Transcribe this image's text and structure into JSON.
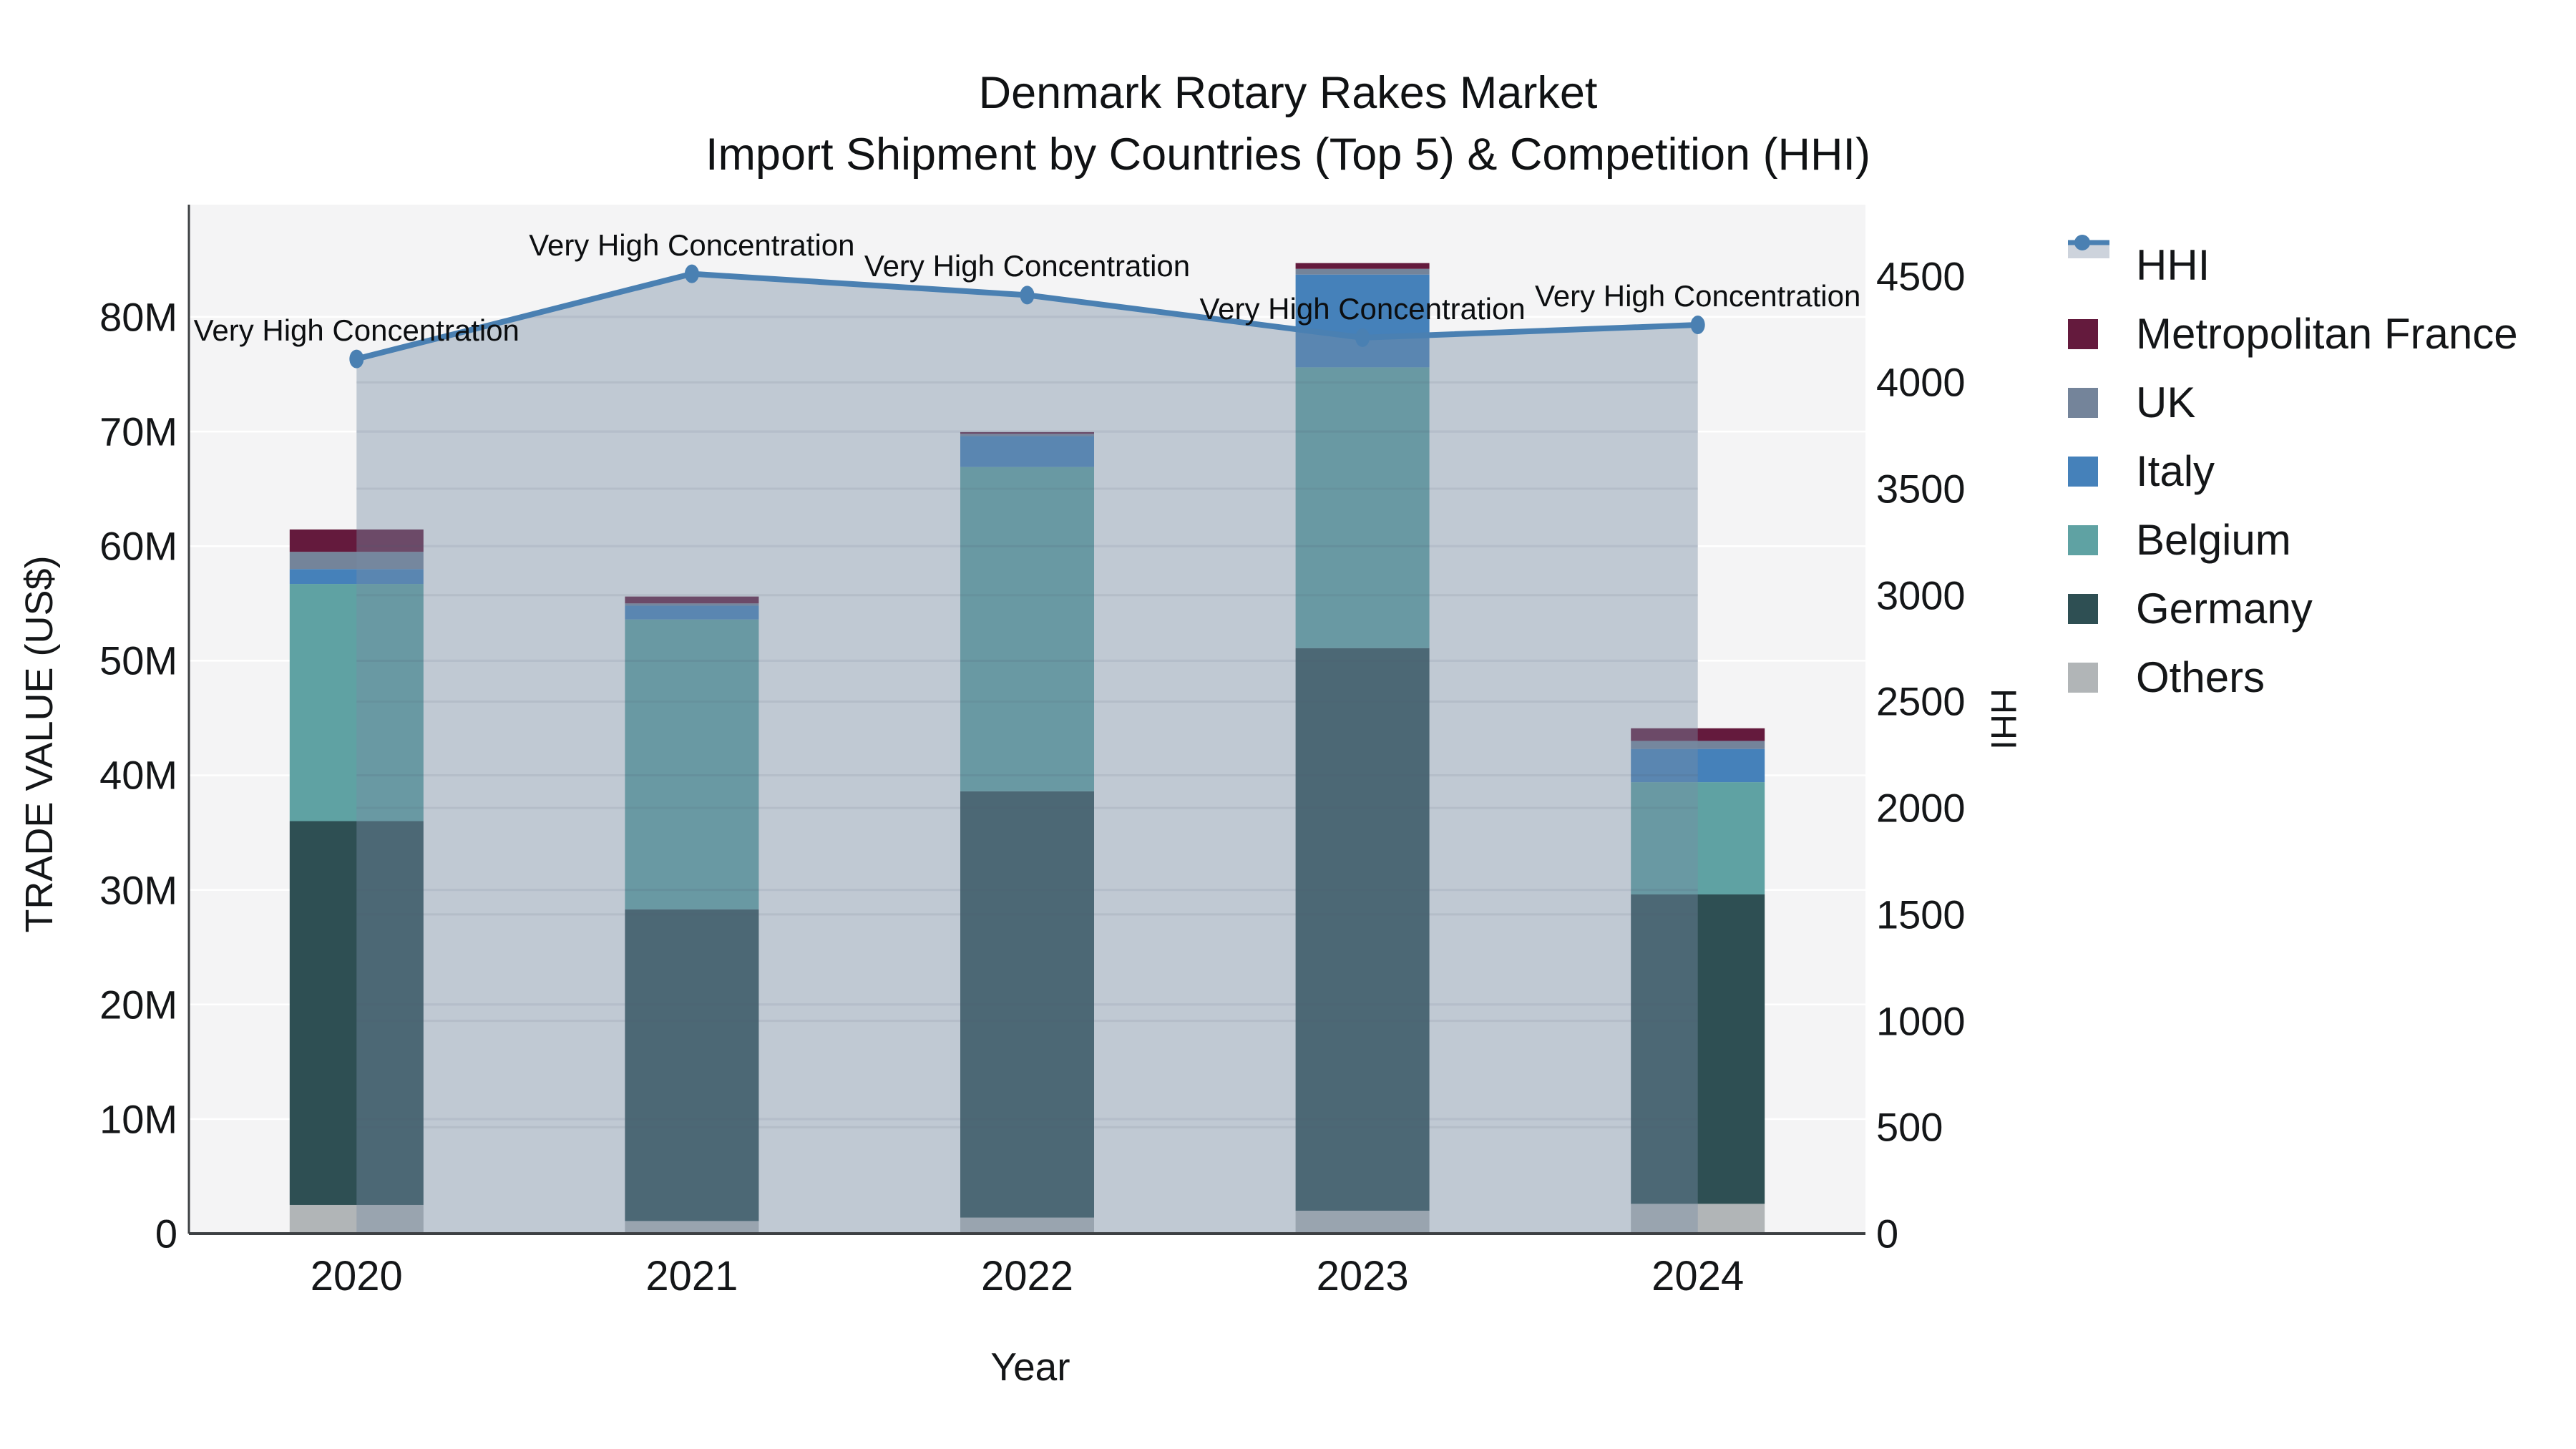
{
  "title": {
    "line1": "Denmark Rotary Rakes Market",
    "line2": "Import Shipment by Countries (Top 5) & Competition (HHI)"
  },
  "chart_data": {
    "type": "combo: stacked bar (left axis) + line with area fill (right axis)",
    "categories": [
      "2020",
      "2021",
      "2022",
      "2023",
      "2024"
    ],
    "unit_bars": "Trade value, US$ millions",
    "unit_line": "HHI index points",
    "bar_series": [
      {
        "name": "Others",
        "color": "#b1b5b7",
        "values": [
          2.5,
          1.1,
          1.4,
          2.0,
          2.6
        ]
      },
      {
        "name": "Germany",
        "color": "#2e4f53",
        "values": [
          33.5,
          27.2,
          37.2,
          49.1,
          27.0
        ]
      },
      {
        "name": "Belgium",
        "color": "#5fa2a3",
        "values": [
          20.7,
          25.3,
          28.3,
          24.5,
          9.8
        ]
      },
      {
        "name": "Italy",
        "color": "#4581ba",
        "values": [
          1.3,
          1.2,
          2.7,
          8.1,
          2.9
        ]
      },
      {
        "name": "UK",
        "color": "#74849a",
        "values": [
          1.5,
          0.2,
          0.2,
          0.5,
          0.7
        ]
      },
      {
        "name": "Metropolitan France",
        "color": "#641a3d",
        "values": [
          1.95,
          0.6,
          0.15,
          0.5,
          1.1
        ]
      }
    ],
    "bar_totals": [
      61.45,
      55.6,
      69.95,
      84.7,
      44.1
    ],
    "line_series": {
      "name": "HHI",
      "axis": "right",
      "values": [
        4110,
        4510,
        4410,
        4210,
        4270
      ],
      "color": "#4a80b2",
      "fill_color": "rgba(120,140,164,0.42)"
    },
    "annotations": [
      {
        "category": "2020",
        "text": "Very High Concentration"
      },
      {
        "category": "2021",
        "text": "Very High Concentration"
      },
      {
        "category": "2022",
        "text": "Very High Concentration"
      },
      {
        "category": "2023",
        "text": "Very High Concentration"
      },
      {
        "category": "2024",
        "text": "Very High Concentration"
      }
    ],
    "axes": {
      "x": {
        "title": "Year",
        "tick_labels": [
          "2020",
          "2021",
          "2022",
          "2023",
          "2024"
        ]
      },
      "left": {
        "title": "TRADE VALUE (US$)",
        "max": 89.8,
        "grid": true,
        "ticks": [
          {
            "v": 0,
            "label": "0"
          },
          {
            "v": 10,
            "label": "10M"
          },
          {
            "v": 20,
            "label": "20M"
          },
          {
            "v": 30,
            "label": "30M"
          },
          {
            "v": 40,
            "label": "40M"
          },
          {
            "v": 50,
            "label": "50M"
          },
          {
            "v": 60,
            "label": "60M"
          },
          {
            "v": 70,
            "label": "70M"
          },
          {
            "v": 80,
            "label": "80M"
          }
        ]
      },
      "right": {
        "title": "HHI",
        "max": 4835,
        "grid": false,
        "ticks": [
          {
            "v": 0,
            "label": "0"
          },
          {
            "v": 500,
            "label": "500"
          },
          {
            "v": 1000,
            "label": "1000"
          },
          {
            "v": 1500,
            "label": "1500"
          },
          {
            "v": 2000,
            "label": "2000"
          },
          {
            "v": 2500,
            "label": "2500"
          },
          {
            "v": 3000,
            "label": "3000"
          },
          {
            "v": 3500,
            "label": "3500"
          },
          {
            "v": 4000,
            "label": "4000"
          },
          {
            "v": 4500,
            "label": "4500"
          }
        ]
      }
    },
    "legend": {
      "position": "right",
      "items": [
        {
          "label": "HHI",
          "type": "line",
          "color": "#4a80b2"
        },
        {
          "label": "Metropolitan France",
          "type": "swatch",
          "color": "#641a3d"
        },
        {
          "label": "UK",
          "type": "swatch",
          "color": "#74849a"
        },
        {
          "label": "Italy",
          "type": "swatch",
          "color": "#4581ba"
        },
        {
          "label": "Belgium",
          "type": "swatch",
          "color": "#5fa2a3"
        },
        {
          "label": "Germany",
          "type": "swatch",
          "color": "#2e4f53"
        },
        {
          "label": "Others",
          "type": "swatch",
          "color": "#b1b5b7"
        }
      ]
    },
    "style": {
      "plot_bg": "#f4f4f5",
      "grid_color": "#ffffff",
      "axis_line_color": "#3d4043",
      "text_color": "#141618",
      "legend_band_color": "#cdd3dc"
    }
  }
}
